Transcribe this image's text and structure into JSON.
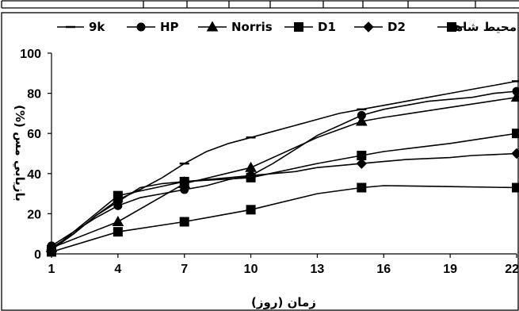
{
  "chart_data": {
    "type": "line",
    "xlabel": "زمان (روز)",
    "ylabel": "بازيابي مس (%)",
    "xlim": [
      1,
      22
    ],
    "ylim": [
      0,
      100
    ],
    "x_ticks": [
      "1",
      "4",
      "7",
      "10",
      "13",
      "16",
      "19",
      "22"
    ],
    "y_ticks": [
      "0",
      "20",
      "40",
      "60",
      "80",
      "100"
    ],
    "grid": false,
    "legend_position": "top",
    "series": [
      {
        "name": "9k",
        "marker": "dash",
        "x": [
          1,
          2,
          3,
          4,
          5,
          6,
          7,
          8,
          9,
          10,
          11,
          12,
          13,
          14,
          15,
          16,
          17,
          18,
          19,
          20,
          21,
          22
        ],
        "y": [
          3,
          10,
          19,
          27,
          32,
          38,
          45,
          51,
          55,
          58,
          61,
          64,
          67,
          70,
          72,
          74,
          76,
          78,
          80,
          82,
          84,
          86
        ]
      },
      {
        "name": "HP",
        "marker": "circle",
        "x": [
          1,
          2,
          3,
          4,
          5,
          6,
          7,
          8,
          9,
          10,
          11,
          12,
          13,
          14,
          15,
          16,
          17,
          18,
          19,
          20,
          21,
          22
        ],
        "y": [
          4,
          11,
          18,
          24,
          28,
          30,
          32,
          34,
          37,
          39,
          45,
          52,
          59,
          64,
          69,
          72,
          74,
          76,
          77,
          78,
          80,
          81
        ]
      },
      {
        "name": "Norris",
        "marker": "triangle",
        "x": [
          1,
          4,
          7,
          10,
          13,
          15,
          16,
          19,
          22
        ],
        "y": [
          3,
          16,
          35,
          43,
          58,
          66,
          68,
          73,
          78
        ]
      },
      {
        "name": "D1",
        "marker": "square",
        "x": [
          1,
          4,
          7,
          10,
          13,
          15,
          16,
          19,
          22
        ],
        "y": [
          2,
          29,
          36,
          38,
          45,
          49,
          51,
          55,
          60
        ]
      },
      {
        "name": "D2",
        "marker": "diamond",
        "x": [
          1,
          2,
          3,
          4,
          5,
          6,
          7,
          8,
          9,
          10,
          11,
          12,
          13,
          14,
          15,
          16,
          17,
          18,
          19,
          20,
          21,
          22
        ],
        "y": [
          2,
          10,
          19,
          26,
          33,
          35,
          36,
          37,
          38,
          39,
          40,
          41,
          43,
          44,
          45,
          46,
          47,
          47.5,
          48,
          49,
          49.5,
          50
        ]
      },
      {
        "name": "محيط شاهد",
        "marker": "square",
        "x": [
          1,
          4,
          7,
          10,
          13,
          15,
          16,
          19,
          22
        ],
        "y": [
          1,
          11,
          16,
          22,
          30,
          33,
          34,
          33.5,
          33
        ]
      }
    ]
  }
}
